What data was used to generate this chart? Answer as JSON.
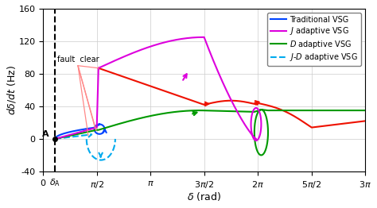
{
  "xlabel": "$\\delta$ (rad)",
  "ylabel": "$d\\delta/dt$ (Hz)",
  "xlim": [
    0,
    9.4248
  ],
  "ylim": [
    -40,
    160
  ],
  "yticks": [
    -40,
    0,
    40,
    80,
    120,
    160
  ],
  "xticks": [
    0,
    1.5708,
    3.1416,
    4.7124,
    6.2832,
    7.854,
    9.4248
  ],
  "xtick_labels": [
    "0",
    "$\\pi/2$",
    "$\\pi$",
    "$3\\pi/2$",
    "$2\\pi$",
    "$5\\pi/2$",
    "$3\\pi$"
  ],
  "delta_A": 0.35,
  "colors": {
    "traditional": "#0044ff",
    "J_adaptive": "#dd00dd",
    "D_adaptive": "#009900",
    "JD_adaptive": "#00aaee",
    "red_unstable": "#ee1100",
    "fault_lines": "#ff8888"
  }
}
